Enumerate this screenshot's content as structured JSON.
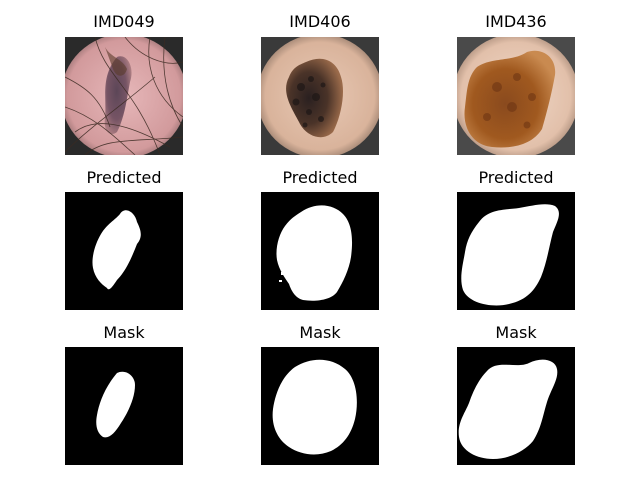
{
  "figure": {
    "columns": [
      {
        "id": "IMD049",
        "label": "IMD049"
      },
      {
        "id": "IMD406",
        "label": "IMD406"
      },
      {
        "id": "IMD436",
        "label": "IMD436"
      }
    ],
    "row_titles": {
      "predicted": "Predicted",
      "mask": "Mask"
    },
    "colors": {
      "mask_background": "#000000",
      "mask_foreground": "#ffffff"
    }
  }
}
